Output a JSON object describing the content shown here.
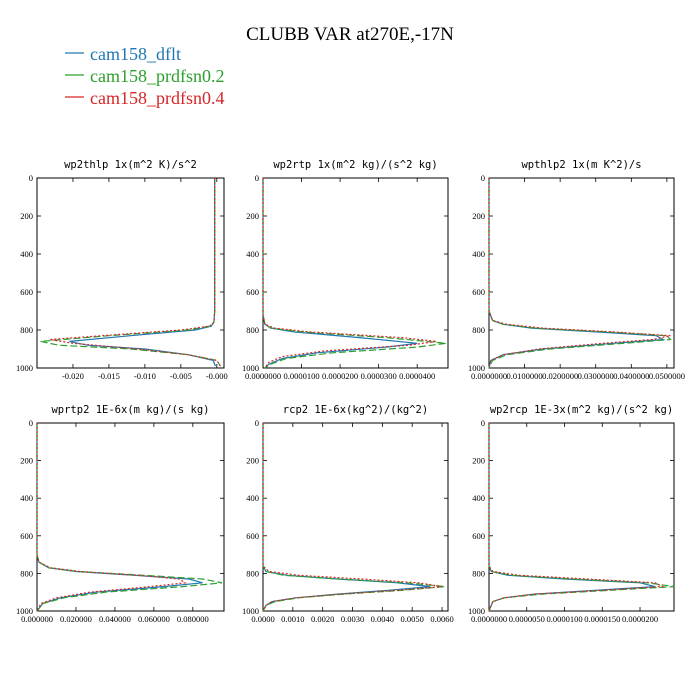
{
  "chart_data": {
    "type": "line",
    "title": "CLUBB VAR at270E,-17N",
    "legend": {
      "position": "top-left",
      "entries": [
        {
          "name": "cam158_dflt",
          "color": "#1f77b4",
          "dash": "solid"
        },
        {
          "name": "cam158_prdfsn0.2",
          "color": "#2ca02c",
          "dash": "longdash"
        },
        {
          "name": "cam158_prdfsn0.4",
          "color": "#d62728",
          "dash": "dotted"
        }
      ]
    },
    "panels": [
      {
        "title": "wp2thlp  1x(m^2 K)/s^2",
        "xlim": [
          -0.025,
          0.001
        ],
        "ylim": [
          1000,
          0
        ],
        "xticks": [
          -0.02,
          -0.015,
          -0.01,
          -0.005,
          0.0
        ],
        "xtick_labels": [
          "-0.020",
          "-0.015",
          "-0.010",
          "-0.005",
          "-0.000"
        ],
        "yticks": [
          0,
          200,
          400,
          600,
          800,
          1000
        ],
        "series": [
          {
            "name": "cam158_dflt",
            "y": [
              0,
              700,
              760,
              780,
              800,
              830,
              860,
              880,
              900,
              930,
              960,
              990
            ],
            "x": [
              -0.0003,
              -0.0003,
              -0.0004,
              -0.0008,
              -0.003,
              -0.012,
              -0.0205,
              -0.018,
              -0.01,
              -0.004,
              -0.0005,
              -0.0002
            ]
          },
          {
            "name": "cam158_prdfsn0.2",
            "y": [
              0,
              700,
              760,
              780,
              800,
              830,
              860,
              880,
              900,
              930,
              960,
              990
            ],
            "x": [
              -0.0003,
              -0.0003,
              -0.0004,
              -0.001,
              -0.004,
              -0.015,
              -0.0245,
              -0.022,
              -0.012,
              -0.004,
              0.0,
              0.0005
            ]
          },
          {
            "name": "cam158_prdfsn0.4",
            "y": [
              0,
              700,
              760,
              780,
              800,
              830,
              850,
              870,
              900,
              930,
              960,
              990
            ],
            "x": [
              -0.0003,
              -0.0003,
              -0.0004,
              -0.001,
              -0.005,
              -0.016,
              -0.0232,
              -0.02,
              -0.011,
              -0.004,
              0.0,
              0.0005
            ]
          }
        ]
      },
      {
        "title": "wp2rtp  1x(m^2 kg)/(s^2 kg)",
        "xlim": [
          0.0,
          4.8e-05
        ],
        "ylim": [
          1000,
          0
        ],
        "xticks": [
          0.0,
          1e-05,
          2e-05,
          3e-05,
          4e-05
        ],
        "xtick_labels": [
          "0.0000000",
          "0.0000100",
          "0.0000200",
          "0.0000300",
          "0.0000400"
        ],
        "yticks": [
          0,
          200,
          400,
          600,
          800,
          1000
        ],
        "series": [
          {
            "name": "cam158_dflt",
            "y": [
              0,
              720,
              770,
              790,
              810,
              840,
              870,
              890,
              920,
              950,
              980,
              1000
            ],
            "x": [
              0.0,
              0.0,
              5e-07,
              2e-06,
              8e-06,
              2.5e-05,
              4e-05,
              3.2e-05,
              1.4e-05,
              5e-06,
              1.5e-06,
              5e-07
            ]
          },
          {
            "name": "cam158_prdfsn0.2",
            "y": [
              0,
              720,
              770,
              790,
              810,
              840,
              870,
              890,
              920,
              950,
              980,
              1000
            ],
            "x": [
              0.0,
              0.0,
              5e-07,
              2e-06,
              1e-05,
              3.2e-05,
              4.75e-05,
              4e-05,
              1.8e-05,
              6e-06,
              2e-06,
              5e-07
            ]
          },
          {
            "name": "cam158_prdfsn0.4",
            "y": [
              0,
              720,
              770,
              790,
              810,
              840,
              860,
              880,
              910,
              940,
              970,
              1000
            ],
            "x": [
              0.0,
              0.0,
              5e-07,
              3e-06,
              1.2e-05,
              3.6e-05,
              4.5e-05,
              3.8e-05,
              1.6e-05,
              5e-06,
              1.5e-06,
              5e-07
            ]
          }
        ]
      },
      {
        "title": "wpthlp2  1x(m K^2)/s",
        "xlim": [
          0.0,
          0.052
        ],
        "ylim": [
          1000,
          0
        ],
        "xticks": [
          0.0,
          0.01,
          0.02,
          0.03,
          0.04,
          0.05
        ],
        "xtick_labels": [
          "0.0000000",
          "0.0100000",
          "0.0200000",
          "0.0300000",
          "0.0400000",
          "0.0500000"
        ],
        "yticks": [
          0,
          200,
          400,
          600,
          800,
          1000
        ],
        "series": [
          {
            "name": "cam158_dflt",
            "y": [
              0,
              700,
              750,
              770,
              790,
              810,
              830,
              850,
              870,
              900,
              930,
              960,
              1000
            ],
            "x": [
              0.0,
              0.0,
              0.001,
              0.004,
              0.012,
              0.03,
              0.047,
              0.049,
              0.035,
              0.015,
              0.004,
              0.0005,
              0.0
            ]
          },
          {
            "name": "cam158_prdfsn0.2",
            "y": [
              0,
              700,
              750,
              770,
              790,
              810,
              830,
              850,
              870,
              900,
              930,
              960,
              1000
            ],
            "x": [
              0.0,
              0.0,
              0.001,
              0.004,
              0.013,
              0.033,
              0.05,
              0.051,
              0.038,
              0.017,
              0.005,
              0.001,
              0.0
            ]
          },
          {
            "name": "cam158_prdfsn0.4",
            "y": [
              0,
              700,
              750,
              770,
              790,
              810,
              830,
              850,
              870,
              900,
              930,
              960,
              1000
            ],
            "x": [
              0.0,
              0.0,
              0.001,
              0.005,
              0.015,
              0.035,
              0.051,
              0.046,
              0.032,
              0.014,
              0.004,
              0.0005,
              0.0
            ]
          }
        ]
      },
      {
        "title": "wprtp2  1E-6x(m kg)/(s kg)",
        "xlim": [
          0.0,
          0.096
        ],
        "ylim": [
          1000,
          0
        ],
        "xticks": [
          0.0,
          0.02,
          0.04,
          0.06,
          0.08
        ],
        "xtick_labels": [
          "0.000000",
          "0.020000",
          "0.040000",
          "0.060000",
          "0.080000"
        ],
        "yticks": [
          0,
          200,
          400,
          600,
          800,
          1000
        ],
        "series": [
          {
            "name": "cam158_dflt",
            "y": [
              0,
              700,
              740,
              770,
              790,
              810,
              830,
              850,
              870,
              900,
              930,
              960,
              1000
            ],
            "x": [
              0.0,
              0.0,
              0.001,
              0.006,
              0.02,
              0.05,
              0.078,
              0.085,
              0.065,
              0.03,
              0.012,
              0.003,
              0.0
            ]
          },
          {
            "name": "cam158_prdfsn0.2",
            "y": [
              0,
              700,
              740,
              770,
              790,
              810,
              830,
              850,
              870,
              900,
              930,
              960,
              1000
            ],
            "x": [
              0.0,
              0.0,
              0.001,
              0.006,
              0.021,
              0.055,
              0.085,
              0.095,
              0.075,
              0.035,
              0.014,
              0.003,
              0.0
            ]
          },
          {
            "name": "cam158_prdfsn0.4",
            "y": [
              0,
              700,
              740,
              770,
              790,
              810,
              830,
              850,
              870,
              900,
              930,
              960,
              1000
            ],
            "x": [
              0.0,
              0.0,
              0.001,
              0.007,
              0.022,
              0.052,
              0.073,
              0.076,
              0.058,
              0.027,
              0.01,
              0.002,
              0.0
            ]
          }
        ]
      },
      {
        "title": "rcp2  1E-6x(kg^2)/(kg^2)",
        "xlim": [
          0.0,
          0.0062
        ],
        "ylim": [
          1000,
          0
        ],
        "xticks": [
          0.0,
          0.001,
          0.002,
          0.003,
          0.004,
          0.005,
          0.006
        ],
        "xtick_labels": [
          "0.0000",
          "0.0010",
          "0.0020",
          "0.0030",
          "0.0040",
          "0.0050",
          "0.0060"
        ],
        "yticks": [
          0,
          200,
          400,
          600,
          800,
          1000
        ],
        "series": [
          {
            "name": "cam158_dflt",
            "y": [
              0,
              760,
              790,
              810,
              830,
              850,
              870,
              890,
              910,
              930,
              950,
              970,
              1000
            ],
            "x": [
              0.0,
              0.0,
              0.0001,
              0.0008,
              0.0025,
              0.0045,
              0.0056,
              0.0042,
              0.0025,
              0.0011,
              0.0003,
              0.0001,
              0.0
            ]
          },
          {
            "name": "cam158_prdfsn0.2",
            "y": [
              0,
              760,
              790,
              810,
              830,
              850,
              870,
              890,
              910,
              930,
              950,
              970,
              1000
            ],
            "x": [
              0.0,
              0.0,
              0.0001,
              0.0007,
              0.0025,
              0.0048,
              0.0061,
              0.0047,
              0.0027,
              0.0012,
              0.0004,
              0.0001,
              0.0
            ]
          },
          {
            "name": "cam158_prdfsn0.4",
            "y": [
              0,
              760,
              790,
              810,
              830,
              850,
              870,
              890,
              910,
              930,
              950,
              970,
              1000
            ],
            "x": [
              0.0,
              0.0,
              0.0002,
              0.0012,
              0.0033,
              0.0052,
              0.006,
              0.0045,
              0.0026,
              0.0011,
              0.0003,
              0.0001,
              0.0
            ]
          }
        ]
      },
      {
        "title": "wp2rcp  1E-3x(m^2 kg)/(s^2 kg)",
        "xlim": [
          0.0,
          2.45e-05
        ],
        "ylim": [
          1000,
          0
        ],
        "xticks": [
          0.0,
          5e-06,
          1e-05,
          1.5e-05,
          2e-05
        ],
        "xtick_labels": [
          "0.0000000",
          "0.0000050",
          "0.0000100",
          "0.0000150",
          "0.0000200"
        ],
        "yticks": [
          0,
          200,
          400,
          600,
          800,
          1000
        ],
        "series": [
          {
            "name": "cam158_dflt",
            "y": [
              0,
              760,
              790,
              810,
              830,
              850,
              870,
              890,
              910,
              930,
              950,
              1000
            ],
            "x": [
              0.0,
              0.0,
              3e-07,
              2.5e-06,
              1e-05,
              2e-05,
              2.2e-05,
              1.4e-05,
              6e-06,
              2e-06,
              5e-07,
              0.0
            ]
          },
          {
            "name": "cam158_prdfsn0.2",
            "y": [
              0,
              760,
              790,
              810,
              830,
              850,
              870,
              890,
              910,
              930,
              950,
              1000
            ],
            "x": [
              0.0,
              0.0,
              3e-07,
              3e-06,
              1.1e-05,
              2.1e-05,
              2.45e-05,
              1.6e-05,
              7e-06,
              2e-06,
              5e-07,
              0.0
            ]
          },
          {
            "name": "cam158_prdfsn0.4",
            "y": [
              0,
              760,
              790,
              810,
              830,
              850,
              870,
              890,
              910,
              930,
              950,
              1000
            ],
            "x": [
              0.0,
              0.0,
              5e-07,
              4e-06,
              1.3e-05,
              2.2e-05,
              2.3e-05,
              1.5e-05,
              6e-06,
              2e-06,
              5e-07,
              0.0
            ]
          }
        ]
      }
    ]
  }
}
